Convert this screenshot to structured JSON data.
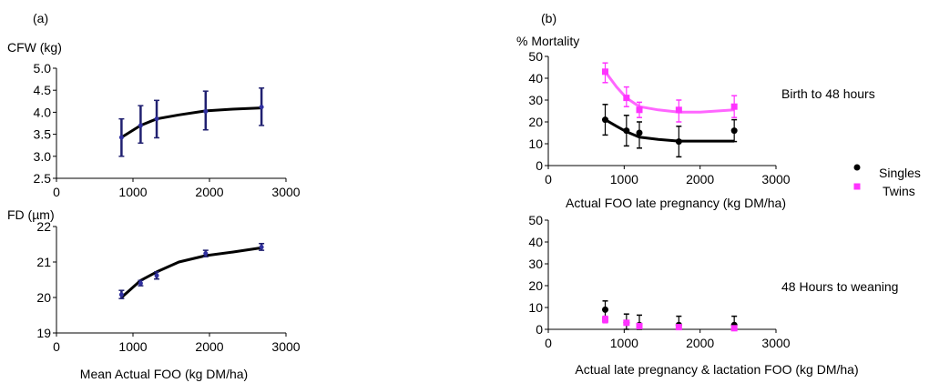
{
  "figure": {
    "panel_a_label": "(a)",
    "panel_b_label": "(b)",
    "legend": {
      "singles": "Singles",
      "twins": "Twins"
    }
  },
  "colors": {
    "singles": "#000000",
    "twins": "#ff33ff",
    "twins_fit": "#ff66ff",
    "error_a": "#202070"
  },
  "chart_data": [
    {
      "id": "a_top",
      "type": "line",
      "ylabel": "CFW (kg)",
      "xlabel": "",
      "xlim": [
        0,
        3000
      ],
      "ylim": [
        2.5,
        5.0
      ],
      "xticks": [
        "0",
        "1000",
        "2000",
        "3000"
      ],
      "yticks": [
        "2.5",
        "3.0",
        "3.5",
        "4.0",
        "4.5",
        "5.0"
      ],
      "points": [
        {
          "x": 850,
          "y": 3.43,
          "low": 3.0,
          "high": 3.85
        },
        {
          "x": 1100,
          "y": 3.7,
          "low": 3.3,
          "high": 4.15
        },
        {
          "x": 1310,
          "y": 3.85,
          "low": 3.42,
          "high": 4.27
        },
        {
          "x": 1950,
          "y": 4.02,
          "low": 3.6,
          "high": 4.48
        },
        {
          "x": 2680,
          "y": 4.12,
          "low": 3.7,
          "high": 4.55
        }
      ],
      "fit": {
        "x": [
          850,
          1100,
          1310,
          1600,
          1950,
          2300,
          2680
        ],
        "y": [
          3.43,
          3.7,
          3.85,
          3.94,
          4.03,
          4.07,
          4.1
        ]
      }
    },
    {
      "id": "a_bottom",
      "type": "line",
      "ylabel": "FD (µm)",
      "xlabel": "Mean Actual FOO (kg DM/ha)",
      "xlim": [
        0,
        3000
      ],
      "ylim": [
        19,
        22
      ],
      "xticks": [
        "0",
        "1000",
        "2000",
        "3000"
      ],
      "yticks": [
        "19",
        "20",
        "21",
        "22"
      ],
      "points": [
        {
          "x": 850,
          "y": 20.08,
          "low": 19.97,
          "high": 20.2
        },
        {
          "x": 1100,
          "y": 20.4,
          "low": 20.33,
          "high": 20.48
        },
        {
          "x": 1310,
          "y": 20.62,
          "low": 20.52,
          "high": 20.72
        },
        {
          "x": 1950,
          "y": 21.24,
          "low": 21.15,
          "high": 21.33
        },
        {
          "x": 2680,
          "y": 21.42,
          "low": 21.33,
          "high": 21.52
        }
      ],
      "fit": {
        "x": [
          850,
          1100,
          1310,
          1600,
          1950,
          2300,
          2680
        ],
        "y": [
          20.0,
          20.48,
          20.72,
          21.0,
          21.18,
          21.28,
          21.4
        ]
      }
    },
    {
      "id": "b_top",
      "type": "line",
      "title": "Birth to 48 hours",
      "ylabel": "% Mortality",
      "xlabel": "Actual FOO late pregnancy (kg DM/ha)",
      "xlim": [
        0,
        3000
      ],
      "ylim": [
        0,
        50
      ],
      "xticks": [
        "0",
        "1000",
        "2000",
        "3000"
      ],
      "yticks": [
        "0",
        "10",
        "20",
        "30",
        "40",
        "50"
      ],
      "series": [
        {
          "name": "Singles",
          "key": "singles",
          "points": [
            {
              "x": 750,
              "y": 21,
              "low": 14,
              "high": 28
            },
            {
              "x": 1030,
              "y": 16,
              "low": 9,
              "high": 23
            },
            {
              "x": 1200,
              "y": 15,
              "low": 8,
              "high": 20
            },
            {
              "x": 1720,
              "y": 11,
              "low": 4,
              "high": 18
            },
            {
              "x": 2450,
              "y": 16,
              "low": 11,
              "high": 21
            }
          ],
          "fit": {
            "x": [
              750,
              900,
              1030,
              1200,
              1450,
              1720,
              2000,
              2450
            ],
            "y": [
              21,
              18,
              15.5,
              13,
              12,
              11.2,
              11.2,
              11.2
            ]
          }
        },
        {
          "name": "Twins",
          "key": "twins",
          "points": [
            {
              "x": 750,
              "y": 43,
              "low": 38,
              "high": 47
            },
            {
              "x": 1030,
              "y": 31,
              "low": 27,
              "high": 36
            },
            {
              "x": 1200,
              "y": 25.5,
              "low": 22,
              "high": 29
            },
            {
              "x": 1720,
              "y": 25.5,
              "low": 20,
              "high": 30
            },
            {
              "x": 2450,
              "y": 27,
              "low": 22,
              "high": 32
            }
          ],
          "fit": {
            "x": [
              750,
              900,
              1030,
              1200,
              1450,
              1720,
              2000,
              2450
            ],
            "y": [
              43,
              36,
              31,
              27,
              25.5,
              24.5,
              24.5,
              25.5
            ]
          }
        }
      ]
    },
    {
      "id": "b_bottom",
      "type": "scatter",
      "title": "48 Hours to weaning",
      "ylabel": "",
      "xlabel": "Actual late pregnancy & lactation FOO (kg DM/ha)",
      "xlim": [
        0,
        3000
      ],
      "ylim": [
        0,
        50
      ],
      "xticks": [
        "0",
        "1000",
        "2000",
        "3000"
      ],
      "yticks": [
        "0",
        "10",
        "20",
        "30",
        "40",
        "50"
      ],
      "series": [
        {
          "name": "Singles",
          "key": "singles",
          "points": [
            {
              "x": 750,
              "y": 9,
              "low": 5,
              "high": 13
            },
            {
              "x": 1030,
              "y": 3,
              "low": 0,
              "high": 7
            },
            {
              "x": 1200,
              "y": 2,
              "low": 0,
              "high": 6.5
            },
            {
              "x": 1720,
              "y": 2,
              "low": 0,
              "high": 6
            },
            {
              "x": 2450,
              "y": 2,
              "low": 0,
              "high": 6
            }
          ]
        },
        {
          "name": "Twins",
          "key": "twins",
          "points": [
            {
              "x": 750,
              "y": 4.5,
              "low": 3,
              "high": 6
            },
            {
              "x": 1030,
              "y": 3,
              "low": 2,
              "high": 4
            },
            {
              "x": 1200,
              "y": 1.5,
              "low": 0.5,
              "high": 2.5
            },
            {
              "x": 1720,
              "y": 1,
              "low": 0,
              "high": 2
            },
            {
              "x": 2450,
              "y": 0.5,
              "low": 0,
              "high": 1.5
            }
          ]
        }
      ]
    }
  ]
}
